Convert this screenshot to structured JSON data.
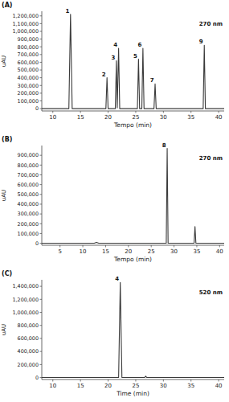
{
  "chart_data": [
    {
      "type": "line",
      "title": "(A)",
      "subtitle": "270 nm",
      "xlabel": "Tempo (min)",
      "ylabel": "uAU",
      "color": "#3a3a3a",
      "x": [
        8,
        12.9,
        13.2,
        13.5,
        19.6,
        19.8,
        20.0,
        21.3,
        21.5,
        21.65,
        21.9,
        22.1,
        25.3,
        25.5,
        25.7,
        26.1,
        26.3,
        26.5,
        28.3,
        28.5,
        28.7,
        37.2,
        37.4,
        37.6,
        41
      ],
      "values": [
        0,
        0,
        1220000,
        0,
        0,
        400000,
        0,
        0,
        620000,
        10000,
        780000,
        0,
        0,
        640000,
        0,
        0,
        780000,
        0,
        0,
        320000,
        0,
        0,
        820000,
        0,
        0
      ],
      "annotations": [
        {
          "text": "1",
          "x": 13.2,
          "y": 1220000
        },
        {
          "text": "2",
          "x": 19.8,
          "y": 400000
        },
        {
          "text": "3",
          "x": 21.5,
          "y": 620000
        },
        {
          "text": "4",
          "x": 21.9,
          "y": 780000
        },
        {
          "text": "5",
          "x": 25.5,
          "y": 640000
        },
        {
          "text": "6",
          "x": 26.3,
          "y": 780000
        },
        {
          "text": "7",
          "x": 28.5,
          "y": 320000
        },
        {
          "text": "9",
          "x": 37.4,
          "y": 820000
        }
      ],
      "xlim": [
        8,
        41
      ],
      "xticks": [
        10,
        15,
        20,
        25,
        30,
        35,
        40
      ],
      "ylim": [
        -30000,
        1260000
      ],
      "yticks": [
        0,
        {
          "value": 100000,
          "label": "100,000"
        },
        {
          "value": 200000,
          "label": "200,000"
        },
        {
          "value": 300000,
          "label": "300,000"
        },
        {
          "value": 400000,
          "label": "400,000"
        },
        {
          "value": 500000,
          "label": "500,000"
        },
        {
          "value": 600000,
          "label": "600,000"
        },
        {
          "value": 700000,
          "label": "700,000"
        },
        {
          "value": 800000,
          "label": "800,000"
        },
        {
          "value": 900000,
          "label": "900,000"
        },
        {
          "value": 1000000,
          "label": "1,000,000"
        },
        {
          "value": 1100000,
          "label": "1,100,000"
        },
        {
          "value": 1200000,
          "label": "1,200,000"
        }
      ]
    },
    {
      "type": "line",
      "title": "(B)",
      "subtitle": "270 nm",
      "xlabel": "Tempo (min)",
      "ylabel": "uAU",
      "color": "#3a3a3a",
      "x": [
        1,
        12.5,
        13,
        13.5,
        28.3,
        28.5,
        28.7,
        34.4,
        34.6,
        34.8,
        41
      ],
      "values": [
        0,
        0,
        8000,
        0,
        0,
        970000,
        0,
        0,
        170000,
        0,
        0
      ],
      "annotations": [
        {
          "text": "8",
          "x": 28.5,
          "y": 970000
        }
      ],
      "xlim": [
        1,
        41
      ],
      "xticks": [
        5,
        10,
        15,
        20,
        25,
        30,
        35,
        40
      ],
      "ylim": [
        -20000,
        1000000
      ],
      "yticks": [
        0,
        {
          "value": 100000,
          "label": "100,000"
        },
        {
          "value": 200000,
          "label": "200,000"
        },
        {
          "value": 300000,
          "label": "300,000"
        },
        {
          "value": 400000,
          "label": "400,000"
        },
        {
          "value": 500000,
          "label": "500,000"
        },
        {
          "value": 600000,
          "label": "600,000"
        },
        {
          "value": 700000,
          "label": "700,000"
        },
        {
          "value": 800000,
          "label": "800,000"
        },
        {
          "value": 900000,
          "label": "900,000"
        }
      ]
    },
    {
      "type": "line",
      "title": "(C)",
      "subtitle": "520 nm",
      "xlabel": "Time (min)",
      "ylabel": "uAU",
      "color": "#3a3a3a",
      "x": [
        8,
        21.9,
        22.2,
        22.5,
        26.6,
        26.8,
        27.0,
        41
      ],
      "values": [
        0,
        0,
        1460000,
        0,
        0,
        20000,
        0,
        0
      ],
      "annotations": [
        {
          "text": "4",
          "x": 22.2,
          "y": 1460000
        }
      ],
      "xlim": [
        8,
        41
      ],
      "xticks": [
        10,
        15,
        20,
        25,
        30,
        35,
        40
      ],
      "ylim": [
        -30000,
        1500000
      ],
      "yticks": [
        0,
        {
          "value": 200000,
          "label": "200,000"
        },
        {
          "value": 400000,
          "label": "400,000"
        },
        {
          "value": 600000,
          "label": "600,000"
        },
        {
          "value": 800000,
          "label": "800,000"
        },
        {
          "value": 1000000,
          "label": "1,000,000"
        },
        {
          "value": 1200000,
          "label": "1,200,000"
        },
        {
          "value": 1400000,
          "label": "1,400,000"
        }
      ]
    }
  ]
}
